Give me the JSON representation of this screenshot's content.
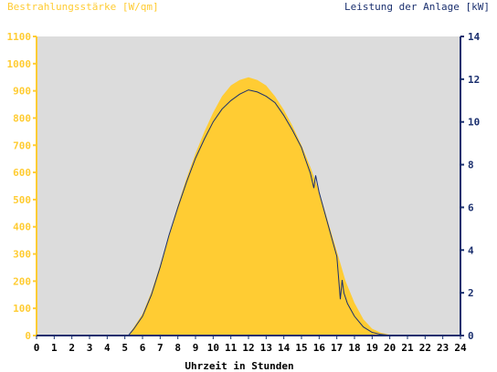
{
  "chart_data": {
    "type": "area",
    "left_axis_title": "Bestrahlungsstärke [W/qm]",
    "right_axis_title": "Leistung der Anlage [kW]",
    "xlabel": "Uhrzeit in Stunden",
    "x_ticks": [
      "0",
      "1",
      "2",
      "3",
      "4",
      "5",
      "6",
      "7",
      "8",
      "9",
      "10",
      "11",
      "12",
      "13",
      "14",
      "15",
      "16",
      "17",
      "18",
      "19",
      "20",
      "21",
      "22",
      "23",
      "24"
    ],
    "left_ticks": [
      "0",
      "100",
      "200",
      "300",
      "400",
      "500",
      "600",
      "700",
      "800",
      "900",
      "1000",
      "1100"
    ],
    "right_ticks": [
      "0",
      "2",
      "4",
      "6",
      "8",
      "10",
      "12",
      "14"
    ],
    "xlim": [
      0,
      24
    ],
    "ylim_left": [
      0,
      1100
    ],
    "ylim_right": [
      0,
      14
    ],
    "grid": false,
    "colors": {
      "plot_background": "#dcdcdc",
      "irradiance_fill": "#ffcc33",
      "power_line": "#1a2f6e",
      "left_axis": "#ffcc33",
      "right_axis": "#1a2f6e"
    },
    "series": [
      {
        "axis": "left",
        "x": [
          5.2,
          5.5,
          6,
          6.5,
          7,
          7.5,
          8,
          8.5,
          9,
          9.5,
          10,
          10.5,
          11,
          11.5,
          12,
          12.5,
          13,
          13.5,
          14,
          14.5,
          15,
          15.5,
          16,
          16.5,
          17,
          17.5,
          18,
          18.5,
          19,
          19.5,
          20,
          20.2
        ],
        "values": [
          0,
          30,
          80,
          160,
          260,
          370,
          480,
          580,
          670,
          750,
          820,
          880,
          920,
          940,
          950,
          940,
          920,
          880,
          830,
          770,
          700,
          620,
          530,
          420,
          310,
          200,
          120,
          60,
          25,
          10,
          3,
          0
        ]
      },
      {
        "axis": "right",
        "x": [
          5.2,
          5.5,
          6,
          6.5,
          7,
          7.5,
          8,
          8.5,
          9,
          9.5,
          10,
          10.5,
          11,
          11.5,
          12,
          12.5,
          13,
          13.5,
          14,
          14.5,
          15,
          15.2,
          15.5,
          15.7,
          15.8,
          16,
          16.5,
          17,
          17.2,
          17.3,
          17.4,
          17.6,
          18,
          18.5,
          19,
          19.5,
          20,
          20.2
        ],
        "values": [
          0,
          0.3,
          0.9,
          1.9,
          3.2,
          4.7,
          6.0,
          7.2,
          8.3,
          9.2,
          10.0,
          10.6,
          11.0,
          11.3,
          11.5,
          11.4,
          11.2,
          10.9,
          10.3,
          9.6,
          8.8,
          8.3,
          7.6,
          6.9,
          7.5,
          6.7,
          5.2,
          3.7,
          1.7,
          2.6,
          2.0,
          1.5,
          0.9,
          0.4,
          0.15,
          0.05,
          0.01,
          0
        ]
      }
    ]
  }
}
